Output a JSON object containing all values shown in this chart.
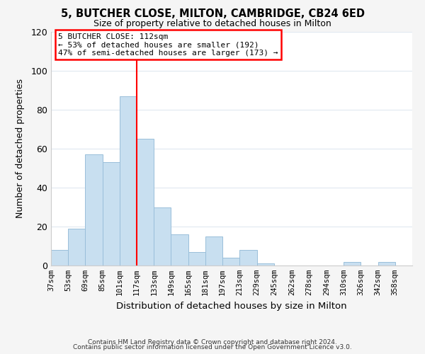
{
  "title": "5, BUTCHER CLOSE, MILTON, CAMBRIDGE, CB24 6ED",
  "subtitle": "Size of property relative to detached houses in Milton",
  "xlabel": "Distribution of detached houses by size in Milton",
  "ylabel": "Number of detached properties",
  "bar_color": "#c8dff0",
  "bar_edge_color": "#9abfda",
  "bar_starts": [
    37,
    53,
    69,
    85,
    101,
    117,
    133,
    149,
    165,
    181,
    197,
    213,
    229,
    245,
    262,
    278,
    294,
    310,
    326,
    342
  ],
  "bar_heights": [
    8,
    19,
    57,
    53,
    87,
    65,
    30,
    16,
    7,
    15,
    4,
    8,
    1,
    0,
    0,
    0,
    0,
    2,
    0,
    2
  ],
  "bin_width": 16,
  "x_tick_labels": [
    "37sqm",
    "53sqm",
    "69sqm",
    "85sqm",
    "101sqm",
    "117sqm",
    "133sqm",
    "149sqm",
    "165sqm",
    "181sqm",
    "197sqm",
    "213sqm",
    "229sqm",
    "245sqm",
    "262sqm",
    "278sqm",
    "294sqm",
    "310sqm",
    "326sqm",
    "342sqm",
    "358sqm"
  ],
  "x_tick_positions": [
    37,
    53,
    69,
    85,
    101,
    117,
    133,
    149,
    165,
    181,
    197,
    213,
    229,
    245,
    262,
    278,
    294,
    310,
    326,
    342,
    358
  ],
  "red_line_x": 117,
  "ylim": [
    0,
    120
  ],
  "yticks": [
    0,
    20,
    40,
    60,
    80,
    100,
    120
  ],
  "annotation_title": "5 BUTCHER CLOSE: 112sqm",
  "annotation_line1": "← 53% of detached houses are smaller (192)",
  "annotation_line2": "47% of semi-detached houses are larger (173) →",
  "footer1": "Contains HM Land Registry data © Crown copyright and database right 2024.",
  "footer2": "Contains public sector information licensed under the Open Government Licence v3.0.",
  "background_color": "#f5f5f5",
  "plot_background": "#ffffff",
  "grid_color": "#e0e8f0"
}
